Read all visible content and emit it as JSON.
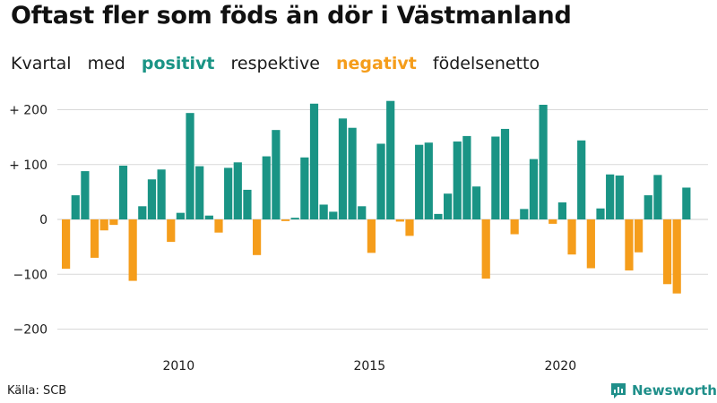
{
  "title": "Oftast fler som föds än dör i Västmanland",
  "subtitle": {
    "w1": "Kvartal",
    "w2": "med",
    "positive_word": "positivt",
    "w4": "respektive",
    "negative_word": "negativt",
    "w6": "födelsenetto"
  },
  "colors": {
    "positive": "#1a9485",
    "negative": "#f59d1b",
    "grid": "#d9d9d9",
    "brand": "#1f8f8a"
  },
  "source": "Källa: SCB",
  "brand": {
    "name": "Newsworthy",
    "icon": "newsworthy-logo-icon"
  },
  "chart_data": {
    "type": "bar",
    "title": "Oftast fler som föds än dör i Västmanland",
    "ylabel": "",
    "xlabel": "",
    "ylim": [
      -220,
      225
    ],
    "yticks": [
      {
        "value": 200,
        "label": "+ 200"
      },
      {
        "value": 100,
        "label": "+ 100"
      },
      {
        "value": 0,
        "label": "0"
      },
      {
        "value": -100,
        "label": "−100"
      },
      {
        "value": -200,
        "label": "−200"
      }
    ],
    "xticks": [
      {
        "index": 12,
        "label": "2010"
      },
      {
        "index": 32,
        "label": "2015"
      },
      {
        "index": 52,
        "label": "2020"
      }
    ],
    "start": "2007 K1",
    "values": [
      -90,
      44,
      88,
      -70,
      -20,
      -10,
      98,
      -112,
      24,
      73,
      91,
      -41,
      12,
      194,
      97,
      7,
      -24,
      94,
      104,
      54,
      -65,
      115,
      163,
      -3,
      3,
      113,
      211,
      27,
      14,
      184,
      167,
      24,
      -61,
      138,
      216,
      -4,
      -30,
      136,
      140,
      10,
      47,
      142,
      152,
      60,
      -108,
      151,
      165,
      -27,
      19,
      110,
      209,
      -8,
      31,
      -64,
      144,
      -89,
      20,
      82,
      80,
      -93,
      -60,
      44,
      81,
      -118,
      -135,
      58
    ]
  }
}
